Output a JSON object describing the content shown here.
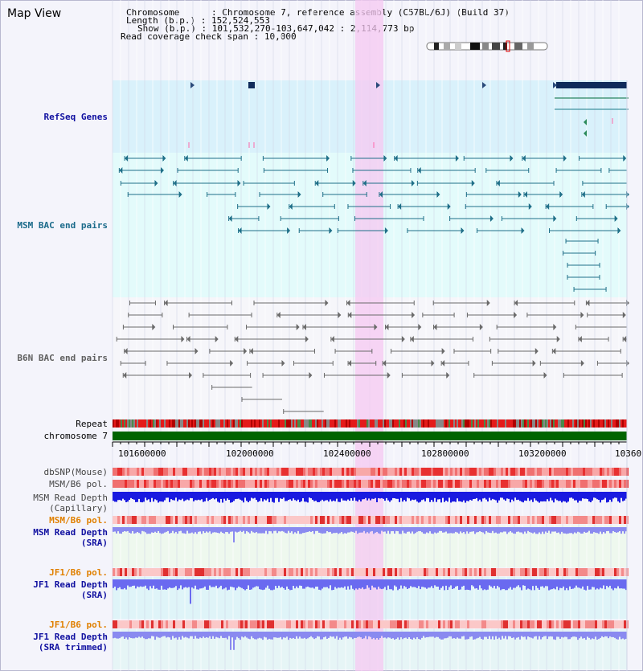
{
  "page": {
    "title": "Map View"
  },
  "header": {
    "chromosome_key": "Chromosome",
    "chromosome_value": "Chromosome 7, reference assembly (C57BL/6J) (Build 37)",
    "length_key": "Length (b.p.)",
    "length_value": "152,524,553",
    "show_key": "Show (b.p.)",
    "show_value": "101,532,270-103,647,042 : 2,114,773 bp",
    "coverage_key": "Read coverage check span",
    "coverage_value": "10,000"
  },
  "tracks": {
    "refseq": "RefSeq Genes",
    "msm_bac": "MSM BAC end pairs",
    "b6n_bac": "B6N BAC end pairs",
    "repeat": "Repeat",
    "chromosome": "chromosome 7",
    "dbsnp": "dbSNP(Mouse)",
    "msm_b6_pol": "MSM/B6 pol.",
    "msm_depth_cap_1": "MSM Read Depth",
    "msm_depth_cap_2": "(Capillary)",
    "msm_b6_pol2": "MSM/B6 pol.",
    "msm_depth_sra_1": "MSM Read Depth",
    "msm_depth_sra_2": "(SRA)",
    "jf1_b6_pol": "JF1/B6 pol.",
    "jf1_depth_sra_1": "JF1 Read Depth",
    "jf1_depth_sra_2": "(SRA)",
    "jf1_b6_pol2": "JF1/B6 pol.",
    "jf1_depth_trim_1": "JF1 Read Depth",
    "jf1_depth_trim_2": "(SRA trimmed)"
  },
  "axis": {
    "ticks": [
      "101600000",
      "102000000",
      "102400000",
      "102800000",
      "103200000",
      "10360"
    ]
  },
  "colors": {
    "refseq_label": "#1010a0",
    "msm_label": "#1a6a8a",
    "b6n_label": "#606060",
    "orange_label": "#e08000",
    "blue_label": "#1010a0",
    "highlight": "#f8c8f0",
    "chromosome_bar": "#006400"
  }
}
